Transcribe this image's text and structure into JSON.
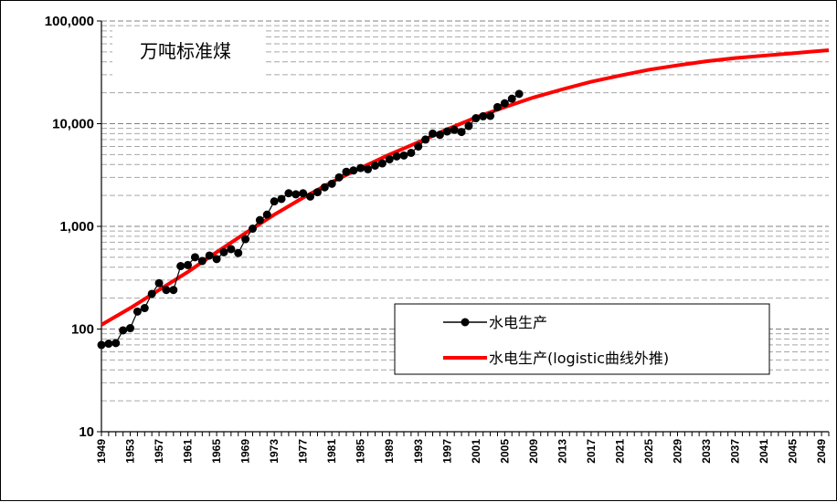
{
  "chart_data": {
    "type": "line",
    "unit_label": "万吨标准煤",
    "yscale": "log",
    "ylim": [
      10,
      100000
    ],
    "yticks": [
      10,
      100,
      1000,
      10000,
      100000
    ],
    "ytick_labels": [
      "10",
      "100",
      "1,000",
      "10,000",
      "100,000"
    ],
    "xlim": [
      1949,
      2050
    ],
    "xtick_labels": [
      "1949",
      "1953",
      "1957",
      "1961",
      "1965",
      "1969",
      "1973",
      "1977",
      "1981",
      "1985",
      "1989",
      "1993",
      "1997",
      "2001",
      "2005",
      "2009",
      "2013",
      "2017",
      "2021",
      "2025",
      "2029",
      "2033",
      "2037",
      "2041",
      "2045",
      "2049"
    ],
    "grid": "horizontal dashed (log minor)",
    "legend_position": "center-right",
    "colors": {
      "actual": "#000000",
      "fit": "#ff0000"
    },
    "series": [
      {
        "name": "水电生产",
        "style": "black line with circle markers",
        "x": [
          1949,
          1950,
          1951,
          1952,
          1953,
          1954,
          1955,
          1956,
          1957,
          1958,
          1959,
          1960,
          1961,
          1962,
          1963,
          1964,
          1965,
          1966,
          1967,
          1968,
          1969,
          1970,
          1971,
          1972,
          1973,
          1974,
          1975,
          1976,
          1977,
          1978,
          1979,
          1980,
          1981,
          1982,
          1983,
          1984,
          1985,
          1986,
          1987,
          1988,
          1989,
          1990,
          1991,
          1992,
          1993,
          1994,
          1995,
          1996,
          1997,
          1998,
          1999,
          2000,
          2001,
          2002,
          2003,
          2004,
          2005,
          2006,
          2007
        ],
        "y": [
          70,
          72,
          73,
          97,
          102,
          148,
          160,
          220,
          280,
          240,
          240,
          410,
          420,
          500,
          460,
          520,
          480,
          560,
          600,
          550,
          750,
          950,
          1150,
          1300,
          1750,
          1850,
          2100,
          2050,
          2100,
          1950,
          2150,
          2400,
          2600,
          3000,
          3400,
          3500,
          3700,
          3600,
          3900,
          4100,
          4500,
          4800,
          4900,
          5200,
          6000,
          7000,
          8000,
          7800,
          8400,
          8700,
          8300,
          9500,
          11300,
          11800,
          11900,
          14500,
          15800,
          17500,
          19500
        ]
      },
      {
        "name": "水电生产(logistic曲线外推)",
        "style": "red thick line",
        "x": [
          1949,
          1953,
          1957,
          1961,
          1965,
          1969,
          1973,
          1977,
          1981,
          1985,
          1989,
          1993,
          1997,
          2001,
          2005,
          2009,
          2013,
          2017,
          2021,
          2025,
          2029,
          2033,
          2037,
          2041,
          2045,
          2050
        ],
        "y": [
          110,
          160,
          240,
          360,
          560,
          860,
          1300,
          1900,
          2700,
          3700,
          5000,
          6600,
          8800,
          11500,
          14500,
          18000,
          21600,
          25600,
          29400,
          33500,
          37000,
          40500,
          43500,
          46000,
          48500,
          52000
        ]
      }
    ]
  }
}
